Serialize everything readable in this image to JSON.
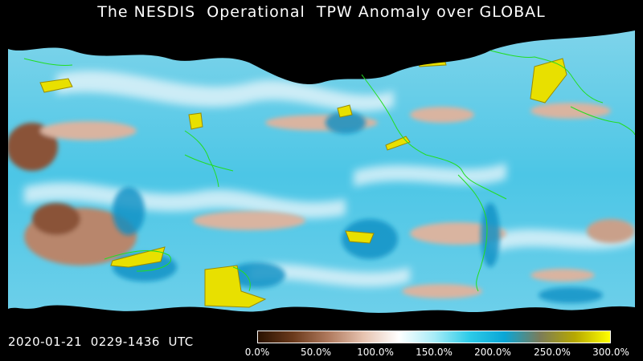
{
  "title": "The NESDIS  Operational  TPW Anomaly over GLOBAL",
  "timestamp": "2020-01-21  0229-1436  UTC",
  "colorbar": {
    "ticks": [
      "0.0%",
      "50.0%",
      "100.0%",
      "150.0%",
      "200.0%",
      "250.0%",
      "300.0%"
    ],
    "stops": [
      "#2a1200",
      "#6b3a1c",
      "#b07a5e",
      "#e6c3b0",
      "#ffffff",
      "#a8ecf7",
      "#2ecbe8",
      "#0aa6d6",
      "#7b7c5a",
      "#b6a800",
      "#ffff00"
    ]
  },
  "map": {
    "colors": {
      "background": "#000000",
      "moist": "#1ec8e6",
      "very_moist": "#0a8fc4",
      "normal": "#f2f2f2",
      "dry": "#c9a08a",
      "very_dry": "#8a5238",
      "extreme": "#e8e000",
      "coastline": "#22dd22"
    }
  }
}
